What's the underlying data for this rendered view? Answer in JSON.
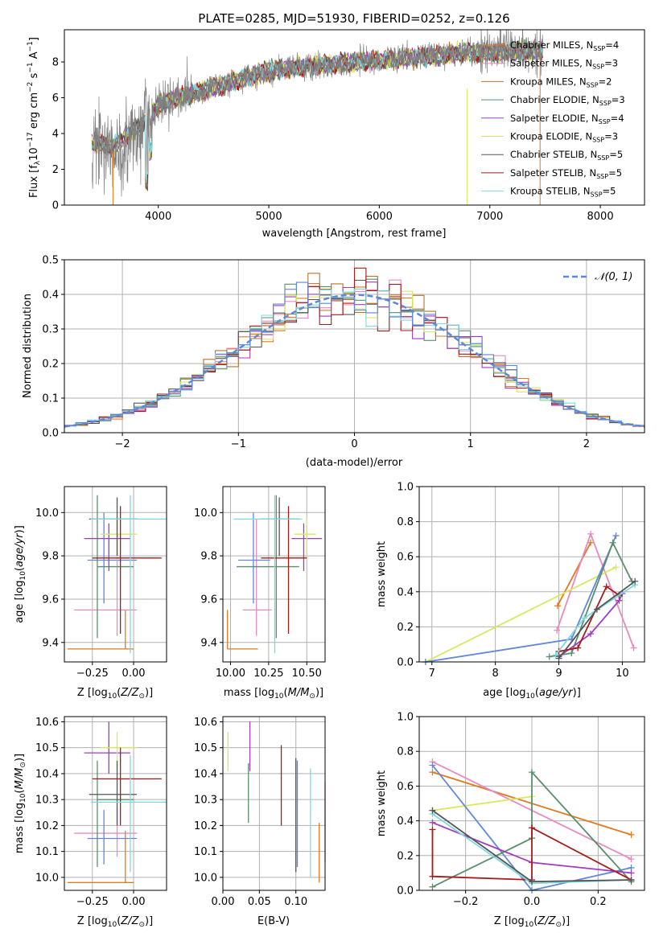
{
  "colors": {
    "orange": "#e07a1f",
    "pink": "#e88ac2",
    "brown": "#b8742b",
    "green": "#5a8f6b",
    "purple": "#a03cc0",
    "yellow": "#d8e85a",
    "gray": "#555555",
    "red": "#a81a1a",
    "cyan": "#7fd8e0",
    "blue": "#5f88d8",
    "data": "#808080"
  },
  "chart_data": [
    {
      "id": "spectrum",
      "type": "line",
      "title": "PLATE=0285, MJD=51930, FIBERID=0252, z=0.126",
      "xlabel": "wavelength [Angstrom, rest frame]",
      "ylabel": "Flux [f$_\\lambda$10$^{-17}$ erg cm$^{-2}$ s$^{-1}$ A$^{-1}$]",
      "ylabel_parts": [
        "Flux [f",
        "λ",
        "10",
        "−17",
        " erg cm",
        "−2",
        " s",
        "−1",
        " A",
        "−1",
        "]"
      ],
      "xlim": [
        3150,
        8400
      ],
      "ylim": [
        0,
        9.8
      ],
      "xticks": [
        "4000",
        "5000",
        "6000",
        "7000",
        "8000"
      ],
      "yticks": [
        "0",
        "2",
        "4",
        "6",
        "8"
      ],
      "continuum": {
        "x": [
          3400,
          3600,
          3900,
          4000,
          4200,
          4500,
          4800,
          5000,
          5300,
          5600,
          6000,
          6400,
          6800,
          7200,
          7500,
          8000
        ],
        "y": [
          3.5,
          3.3,
          4.8,
          5.6,
          6.0,
          6.6,
          7.1,
          7.5,
          7.7,
          7.9,
          8.1,
          8.3,
          8.5,
          8.6,
          8.6,
          8.6
        ]
      },
      "series": [
        {
          "name": "Chabrier MILES, N$_{SSP}$=4",
          "label_main": "Chabrier MILES, N",
          "label_sub": "SSP",
          "label_end": "=4",
          "color_key": "orange"
        },
        {
          "name": "Salpeter MILES, N$_{SSP}$=3",
          "label_main": "Salpeter MILES, N",
          "label_sub": "SSP",
          "label_end": "=3",
          "color_key": "pink"
        },
        {
          "name": "Kroupa MILES, N$_{SSP}$=2",
          "label_main": "Kroupa MILES, N",
          "label_sub": "SSP",
          "label_end": "=2",
          "color_key": "brown"
        },
        {
          "name": "Chabrier ELODIE, N$_{SSP}$=3",
          "label_main": "Chabrier ELODIE, N",
          "label_sub": "SSP",
          "label_end": "=3",
          "color_key": "green"
        },
        {
          "name": "Salpeter ELODIE, N$_{SSP}$=4",
          "label_main": "Salpeter ELODIE, N",
          "label_sub": "SSP",
          "label_end": "=4",
          "color_key": "purple"
        },
        {
          "name": "Kroupa ELODIE, N$_{SSP}$=3",
          "label_main": "Kroupa ELODIE, N",
          "label_sub": "SSP",
          "label_end": "=3",
          "color_key": "yellow"
        },
        {
          "name": "Chabrier STELIB, N$_{SSP}$=5",
          "label_main": "Chabrier STELIB, N",
          "label_sub": "SSP",
          "label_end": "=5",
          "color_key": "gray"
        },
        {
          "name": "Salpeter STELIB, N$_{SSP}$=5",
          "label_main": "Salpeter STELIB, N",
          "label_sub": "SSP",
          "label_end": "=5",
          "color_key": "red"
        },
        {
          "name": "Kroupa STELIB, N$_{SSP}$=5",
          "label_main": "Kroupa STELIB, N",
          "label_sub": "SSP",
          "label_end": "=5",
          "color_key": "cyan"
        }
      ]
    },
    {
      "id": "residuals",
      "type": "histogram",
      "xlabel": "(data-model)/error",
      "ylabel": "Normed distribution",
      "xlim": [
        -2.5,
        2.5
      ],
      "ylim": [
        0,
        0.5
      ],
      "xticks": [
        "−2",
        "−1",
        "0",
        "1",
        "2"
      ],
      "yticks": [
        "0.0",
        "0.1",
        "0.2",
        "0.3",
        "0.4",
        "0.5"
      ],
      "gaussian_label": "𝒩(0, 1)",
      "bin_width": 0.1,
      "series_colors": [
        "orange",
        "pink",
        "brown",
        "green",
        "purple",
        "yellow",
        "gray",
        "red",
        "cyan",
        "blue"
      ]
    },
    {
      "id": "age_vs_Z",
      "type": "scatter",
      "xlabel": "Z [log$_{10}$($Z/Z_\\odot$)]",
      "ylabel": "age  [log$_{10}$($age/yr$)]",
      "xlim": [
        -0.42,
        0.2
      ],
      "ylim": [
        9.31,
        10.12
      ],
      "xticks": [
        "−0.25",
        "0.00"
      ],
      "yticks": [
        "9.4",
        "9.6",
        "9.8",
        "10.0"
      ]
    },
    {
      "id": "age_vs_mass",
      "type": "scatter",
      "xlabel": "mass [log$_{10}$($M/M_\\odot$)]",
      "ylabel": "",
      "xlim": [
        9.95,
        10.62
      ],
      "ylim": [
        9.31,
        10.12
      ],
      "xticks": [
        "10.00",
        "10.25",
        "10.50"
      ],
      "yticks": [
        "9.4",
        "9.6",
        "9.8",
        "10.0"
      ]
    },
    {
      "id": "weight_vs_age",
      "type": "line",
      "xlabel": "age  [log$_{10}$($age/yr$)]",
      "ylabel": "mass weight",
      "xlim": [
        6.8,
        10.35
      ],
      "ylim": [
        0,
        1.0
      ],
      "xticks": [
        "7",
        "8",
        "9",
        "10"
      ],
      "yticks": [
        "0.0",
        "0.2",
        "0.4",
        "0.6",
        "0.8",
        "1.0"
      ],
      "series": [
        {
          "color_key": "orange",
          "x": [
            8.98,
            9.5
          ],
          "y": [
            0.32,
            0.68
          ]
        },
        {
          "color_key": "pink",
          "x": [
            8.97,
            9.5,
            10.18
          ],
          "y": [
            0.18,
            0.73,
            0.08
          ]
        },
        {
          "color_key": "yellow",
          "x": [
            6.9,
            9.9
          ],
          "y": [
            0.0,
            0.54
          ]
        },
        {
          "color_key": "blue",
          "x": [
            6.9,
            9.2,
            9.9
          ],
          "y": [
            0.0,
            0.13,
            0.72
          ]
        },
        {
          "color_key": "green",
          "x": [
            8.85,
            9.2,
            9.85,
            10.15
          ],
          "y": [
            0.03,
            0.05,
            0.68,
            0.46
          ]
        },
        {
          "color_key": "purple",
          "x": [
            9.0,
            9.5,
            9.95,
            10.0
          ],
          "y": [
            0.03,
            0.16,
            0.35,
            0.39
          ]
        },
        {
          "color_key": "red",
          "x": [
            9.0,
            9.3,
            9.75,
            9.95
          ],
          "y": [
            0.06,
            0.08,
            0.43,
            0.38
          ]
        },
        {
          "color_key": "cyan",
          "x": [
            8.95,
            9.4,
            10.2
          ],
          "y": [
            0.04,
            0.25,
            0.44
          ]
        },
        {
          "color_key": "gray",
          "x": [
            9.0,
            9.6,
            10.2
          ],
          "y": [
            0.02,
            0.3,
            0.46
          ]
        }
      ]
    },
    {
      "id": "mass_vs_Z",
      "type": "scatter",
      "xlabel": "Z [log$_{10}$($Z/Z_\\odot$)]",
      "ylabel": "mass [log$_{10}$($M/M_\\odot$)]",
      "xlim": [
        -0.42,
        0.2
      ],
      "ylim": [
        9.95,
        10.62
      ],
      "xticks": [
        "−0.25",
        "0.00"
      ],
      "yticks": [
        "10.0",
        "10.1",
        "10.2",
        "10.3",
        "10.4",
        "10.5",
        "10.6"
      ]
    },
    {
      "id": "mass_vs_EBV",
      "type": "scatter",
      "xlabel": "E(B-V)",
      "ylabel": "",
      "xlim": [
        0.0,
        0.14
      ],
      "ylim": [
        9.95,
        10.62
      ],
      "xticks": [
        "0.00",
        "0.05",
        "0.10"
      ],
      "yticks": [
        "10.0",
        "10.1",
        "10.2",
        "10.3",
        "10.4",
        "10.5",
        "10.6"
      ]
    },
    {
      "id": "weight_vs_Z",
      "type": "line",
      "xlabel": "Z [log$_{10}$($Z/Z_\\odot$)]",
      "ylabel": "mass weight",
      "xlim": [
        -0.34,
        0.34
      ],
      "ylim": [
        0,
        1.0
      ],
      "xticks": [
        "−0.2",
        "0.0",
        "0.2"
      ],
      "yticks": [
        "0.0",
        "0.2",
        "0.4",
        "0.6",
        "0.8",
        "1.0"
      ],
      "series": [
        {
          "color_key": "orange",
          "x": [
            -0.3,
            0.3
          ],
          "y": [
            0.68,
            0.32
          ]
        },
        {
          "color_key": "pink",
          "x": [
            -0.3,
            0.3
          ],
          "y": [
            0.74,
            0.18
          ]
        },
        {
          "color_key": "yellow",
          "x": [
            -0.3,
            0.0
          ],
          "y": [
            0.46,
            0.54
          ]
        },
        {
          "color_key": "blue",
          "x": [
            -0.3,
            0.0,
            0.3
          ],
          "y": [
            0.72,
            0.0,
            0.13
          ]
        },
        {
          "color_key": "green",
          "x": [
            -0.3,
            0.0,
            0.0,
            0.3
          ],
          "y": [
            0.02,
            0.3,
            0.68,
            0.05
          ]
        },
        {
          "color_key": "purple",
          "x": [
            -0.3,
            0.0,
            0.3
          ],
          "y": [
            0.39,
            0.16,
            0.1
          ]
        },
        {
          "color_key": "red",
          "x": [
            -0.3,
            -0.3,
            0.0,
            0.0,
            0.3
          ],
          "y": [
            0.35,
            0.08,
            0.06,
            0.36,
            0.06
          ]
        },
        {
          "color_key": "cyan",
          "x": [
            -0.3,
            0.0,
            0.3
          ],
          "y": [
            0.44,
            0.04,
            0.06
          ]
        },
        {
          "color_key": "gray",
          "x": [
            -0.3,
            0.0,
            0.3
          ],
          "y": [
            0.46,
            0.05,
            0.06
          ]
        }
      ]
    }
  ],
  "errorbars": {
    "pointsZ": [
      {
        "color_key": "orange",
        "Z": -0.05,
        "age": 9.37,
        "mass": 9.98,
        "Zlo": -0.4,
        "Zhi": 0.0,
        "agelo": 9.37,
        "agehi": 9.55,
        "masslo": 9.98,
        "masshi": 10.18
      },
      {
        "color_key": "pink",
        "Z": -0.1,
        "age": 9.55,
        "mass": 10.17,
        "Zlo": -0.36,
        "Zhi": 0.02,
        "agelo": 9.43,
        "agehi": 9.97,
        "masslo": 10.08,
        "masshi": 10.27
      },
      {
        "color_key": "blue",
        "Z": -0.18,
        "age": 9.78,
        "mass": 10.15,
        "Zlo": -0.28,
        "Zhi": 0.02,
        "agelo": 9.58,
        "agehi": 10.0,
        "masslo": 10.05,
        "masshi": 10.26
      },
      {
        "color_key": "green",
        "Z": -0.22,
        "age": 9.75,
        "mass": 10.3,
        "Zlo": -0.22,
        "Zhi": 0.0,
        "agelo": 9.42,
        "agehi": 10.08,
        "masslo": 10.04,
        "masshi": 10.45
      },
      {
        "color_key": "purple",
        "Z": -0.15,
        "age": 9.88,
        "mass": 10.48,
        "Zlo": -0.3,
        "Zhi": -0.02,
        "agelo": 9.73,
        "agehi": 9.95,
        "masslo": 10.4,
        "masshi": 10.6
      },
      {
        "color_key": "yellow",
        "Z": -0.1,
        "age": 9.9,
        "mass": 10.5,
        "Zlo": -0.2,
        "Zhi": 0.02,
        "agelo": 9.78,
        "agehi": 9.98,
        "masslo": 10.42,
        "masshi": 10.56
      },
      {
        "color_key": "gray",
        "Z": -0.1,
        "age": 9.97,
        "mass": 10.32,
        "Zlo": -0.27,
        "Zhi": 0.02,
        "agelo": 9.8,
        "agehi": 10.07,
        "masslo": 10.2,
        "masshi": 10.45
      },
      {
        "color_key": "red",
        "Z": -0.08,
        "age": 9.79,
        "mass": 10.38,
        "Zlo": -0.25,
        "Zhi": 0.17,
        "agelo": 9.44,
        "agehi": 10.03,
        "masslo": 10.2,
        "masshi": 10.5
      },
      {
        "color_key": "cyan",
        "Z": -0.02,
        "age": 9.97,
        "mass": 10.29,
        "Zlo": -0.26,
        "Zhi": 0.2,
        "agelo": 9.35,
        "agehi": 10.08,
        "masslo": 10.02,
        "masshi": 10.47
      }
    ],
    "pointsEBV": [
      {
        "color_key": "yellow",
        "ebv": 0.007,
        "lo": 10.41,
        "hi": 10.56
      },
      {
        "color_key": "purple",
        "ebv": 0.037,
        "lo": 10.41,
        "hi": 10.6
      },
      {
        "color_key": "green",
        "ebv": 0.035,
        "lo": 10.21,
        "hi": 10.44
      },
      {
        "color_key": "red",
        "ebv": 0.08,
        "lo": 10.2,
        "hi": 10.51
      },
      {
        "color_key": "gray",
        "ebv": 0.1,
        "lo": 10.02,
        "hi": 10.46
      },
      {
        "color_key": "blue",
        "ebv": 0.102,
        "lo": 10.04,
        "hi": 10.45
      },
      {
        "color_key": "cyan",
        "ebv": 0.12,
        "lo": 10.0,
        "hi": 10.42
      },
      {
        "color_key": "orange",
        "ebv": 0.132,
        "lo": 9.98,
        "hi": 10.21
      },
      {
        "color_key": "pink",
        "ebv": 0.14,
        "lo": 10.06,
        "hi": 10.37
      }
    ]
  }
}
